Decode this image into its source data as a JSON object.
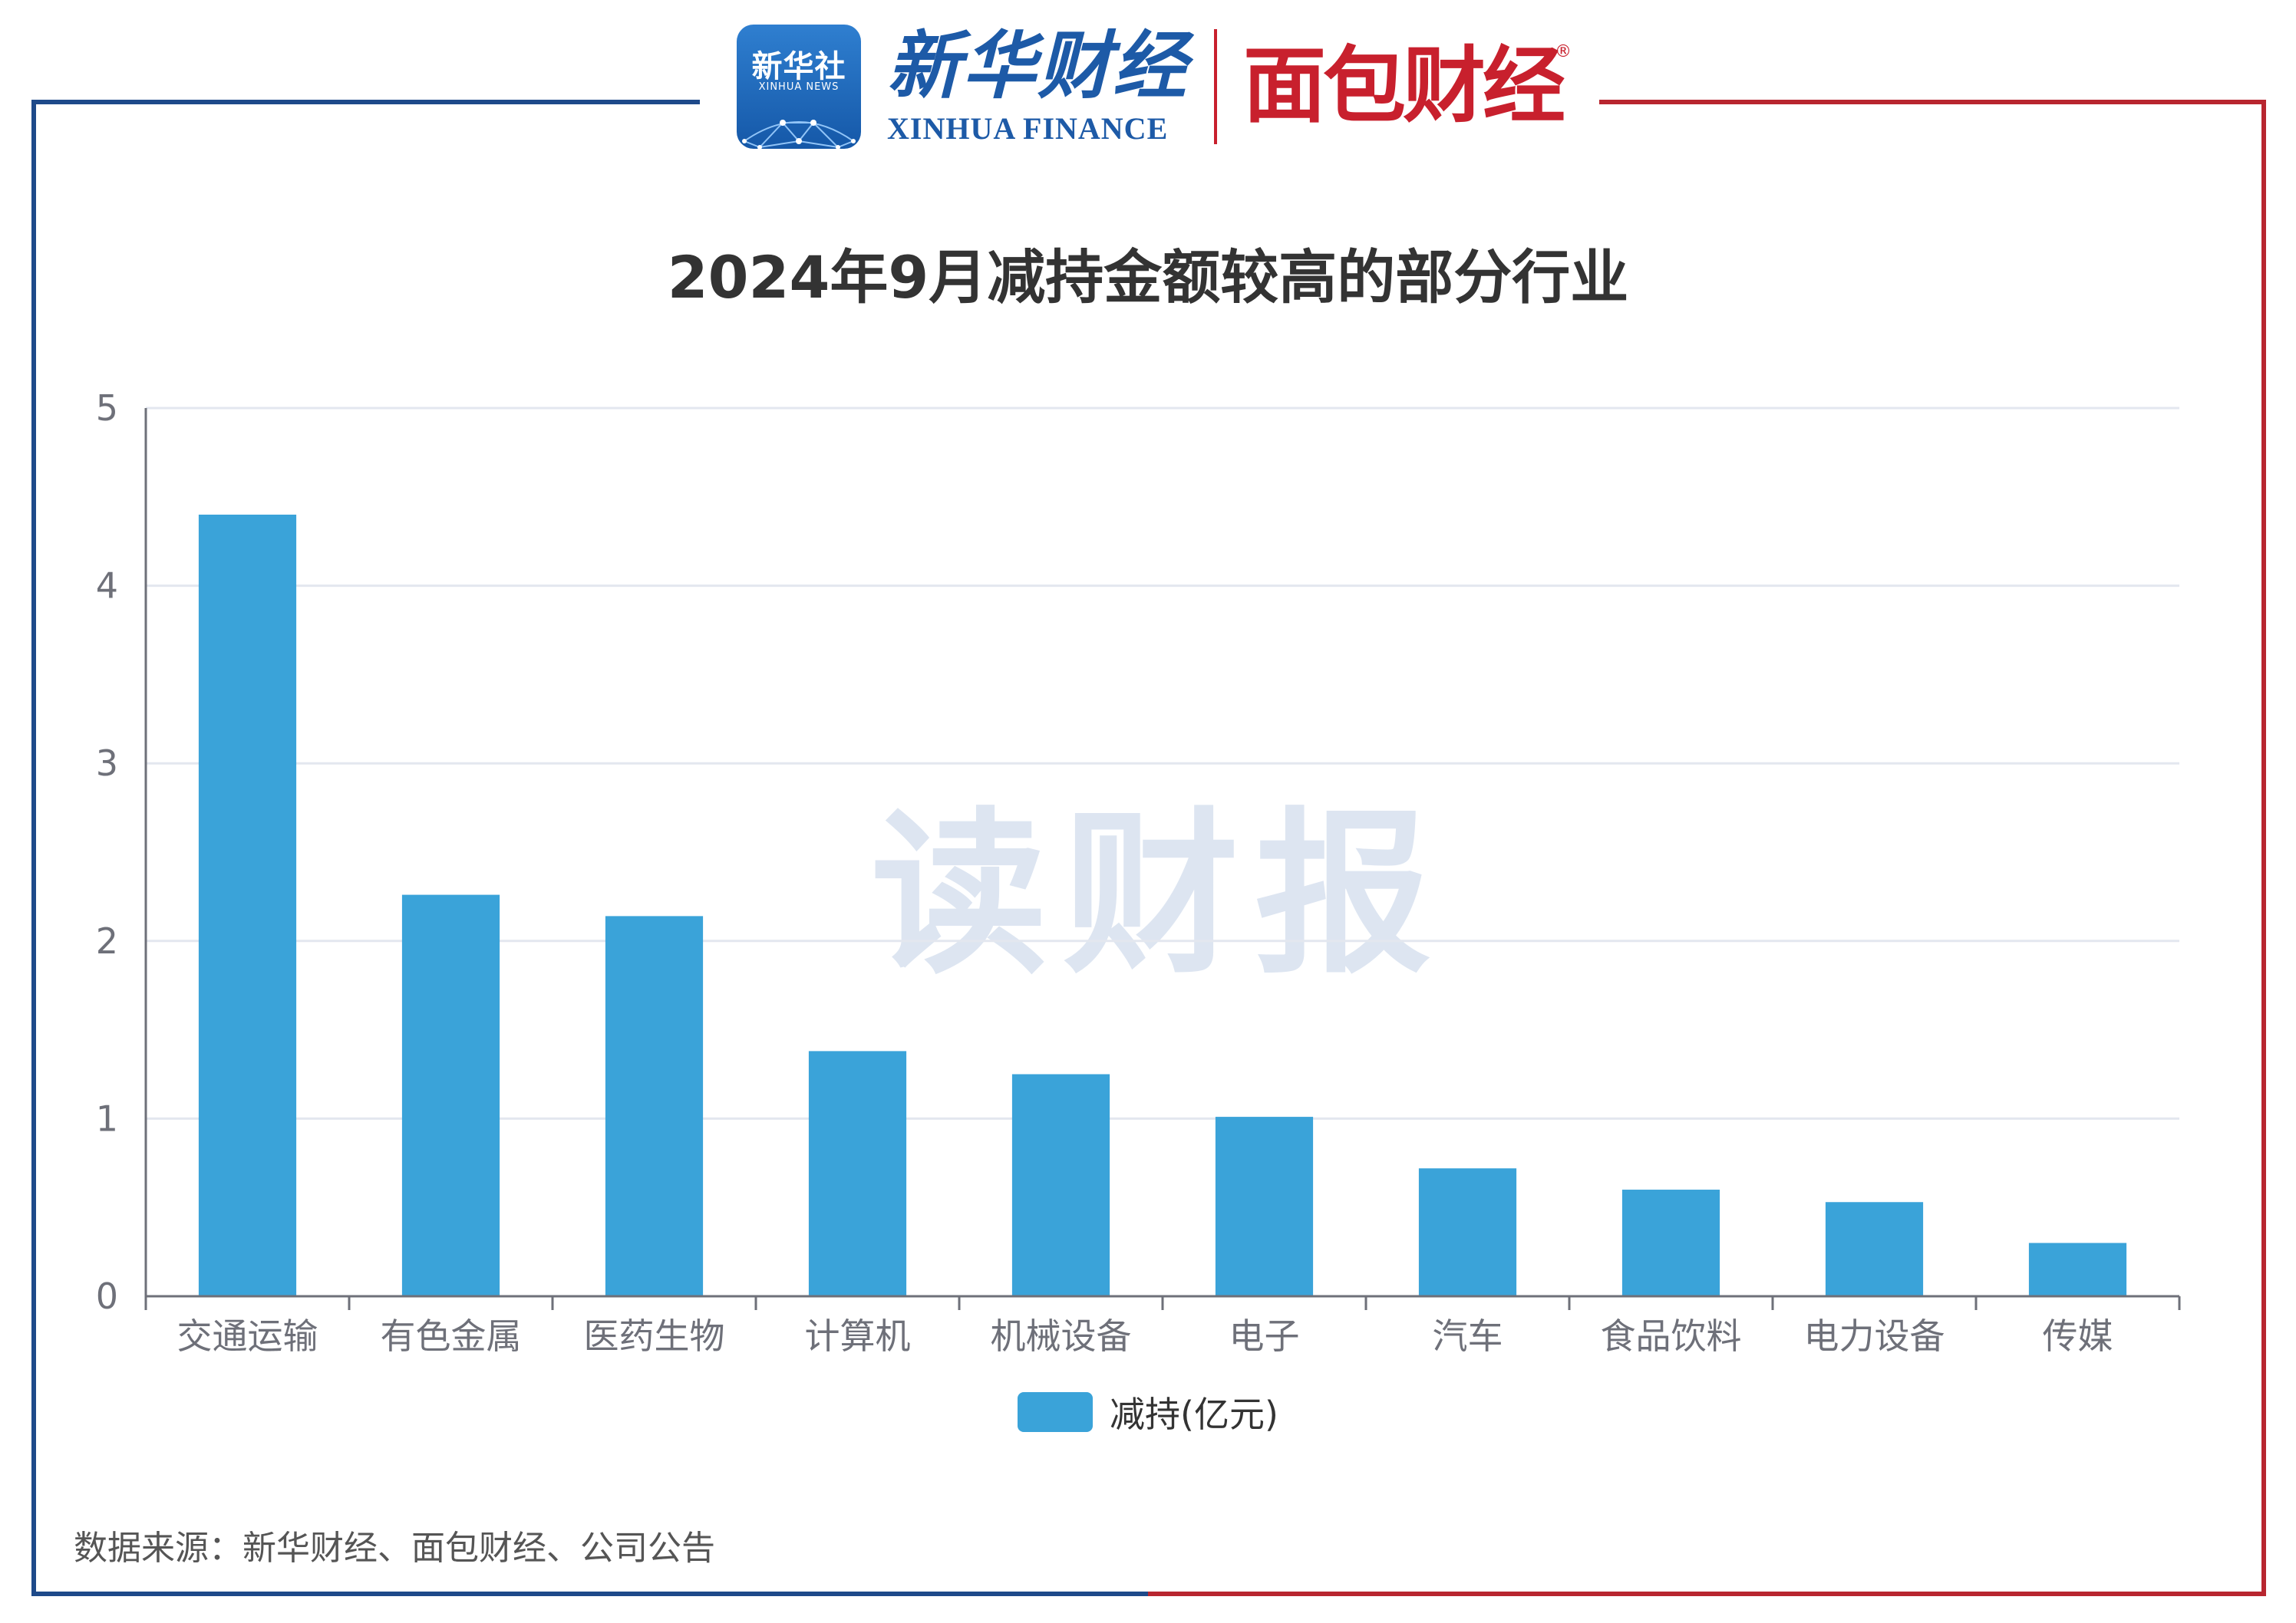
{
  "header": {
    "xinhua_badge_text": "新华社",
    "xinhua_badge_sub": "XINHUA NEWS",
    "xinhua_finance_cn": "新华财经",
    "xinhua_finance_en": "XINHUA FINANCE",
    "mianbao_cn": "面包财经",
    "mianbao_reg": "®"
  },
  "watermark": "读财报",
  "colors": {
    "bar": "#3aa3d9",
    "frame_left": "#1e4a8a",
    "frame_right": "#b8262f",
    "grid": "#e3e7ef",
    "axis": "#6e7079"
  },
  "chart_data": {
    "type": "bar",
    "title": "2024年9月减持金额较高的部分行业",
    "categories": [
      "交通运输",
      "有色金属",
      "医药生物",
      "计算机",
      "机械设备",
      "电子",
      "汽车",
      "食品饮料",
      "电力设备",
      "传媒"
    ],
    "series": [
      {
        "name": "减持(亿元)",
        "values": [
          4.4,
          2.26,
          2.14,
          1.38,
          1.25,
          1.01,
          0.72,
          0.6,
          0.53,
          0.3
        ]
      }
    ],
    "y_ticks": [
      "0",
      "1",
      "2",
      "3",
      "4",
      "5"
    ],
    "ylim": [
      0,
      5
    ],
    "grid": true,
    "legend": "bottom-center"
  },
  "source_note": "数据来源：新华财经、面包财经、公司公告"
}
